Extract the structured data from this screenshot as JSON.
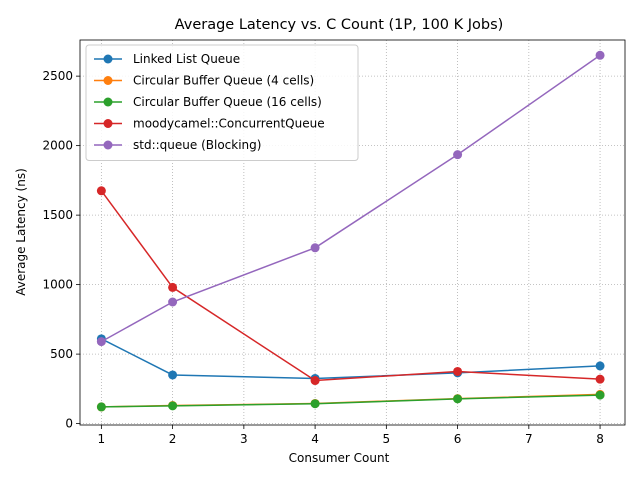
{
  "chart_data": {
    "type": "line",
    "title": "Average Latency vs. C Count (1P, 100 K Jobs)",
    "xlabel": "Consumer Count",
    "ylabel": "Average Latency (ns)",
    "xlim": [
      0.7,
      8.35
    ],
    "ylim": [
      -10,
      2760
    ],
    "xticks": [
      1,
      2,
      3,
      4,
      5,
      6,
      7,
      8
    ],
    "yticks": [
      0,
      500,
      1000,
      1500,
      2000,
      2500
    ],
    "grid": true,
    "legend_position": "top-left",
    "x": [
      1,
      2,
      4,
      6,
      8
    ],
    "series": [
      {
        "name": "Linked List Queue",
        "color": "#1f77b4",
        "values": [
          610,
          350,
          325,
          365,
          415
        ]
      },
      {
        "name": "Circular Buffer Queue (4 cells)",
        "color": "#ff7f0e",
        "values": [
          120,
          130,
          145,
          180,
          210
        ]
      },
      {
        "name": "Circular Buffer Queue (16 cells)",
        "color": "#2ca02c",
        "values": [
          120,
          128,
          143,
          178,
          205
        ]
      },
      {
        "name": "moodycamel::ConcurrentQueue",
        "color": "#d62728",
        "values": [
          1675,
          980,
          310,
          375,
          320
        ]
      },
      {
        "name": "std::queue (Blocking)",
        "color": "#9467bd",
        "values": [
          590,
          875,
          1265,
          1935,
          2650
        ]
      }
    ]
  }
}
